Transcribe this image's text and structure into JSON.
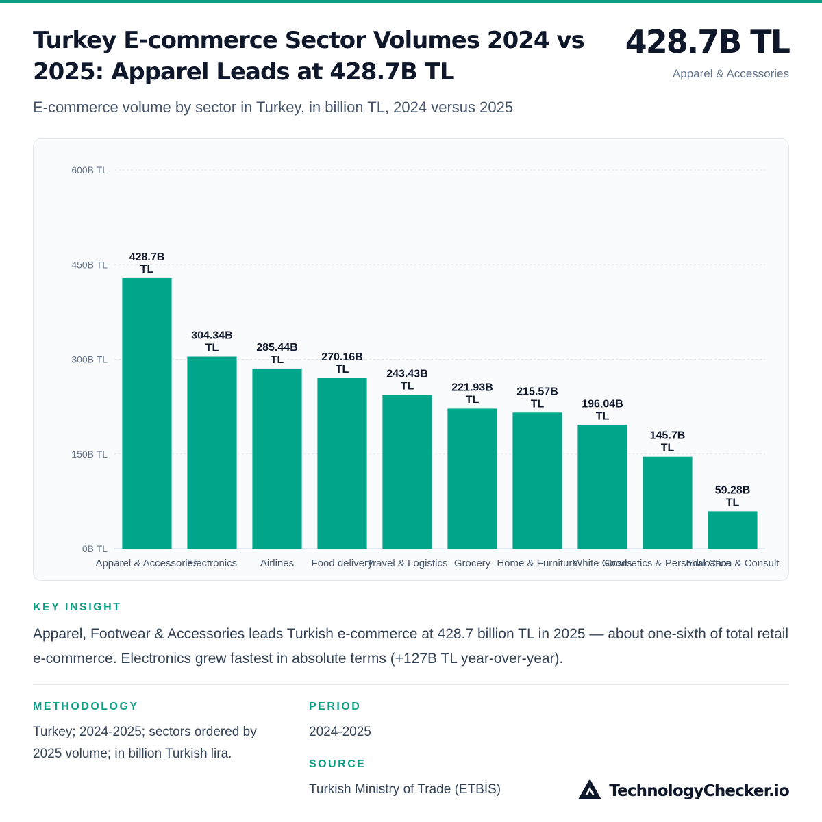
{
  "header": {
    "title": "Turkey E-commerce Sector Volumes 2024 vs 2025: Apparel Leads at 428.7B TL",
    "subtitle": "E-commerce volume by sector in Turkey, in billion TL, 2024 versus 2025",
    "headline_value": "428.7B TL",
    "headline_label": "Apparel & Accessories"
  },
  "colors": {
    "accent": "#0d9f86",
    "bar": "#00a58a"
  },
  "chart_data": {
    "type": "bar",
    "categories": [
      "Apparel & Accessories",
      "Electronics",
      "Airlines",
      "Food delivery",
      "Travel & Logistics",
      "Grocery",
      "Home & Furniture",
      "White Goods",
      "Cosmetics & Personal Care",
      "Education & Consult"
    ],
    "values": [
      428.7,
      304.34,
      285.44,
      270.16,
      243.43,
      221.93,
      215.57,
      196.04,
      145.7,
      59.28
    ],
    "data_labels": [
      "428.7B TL",
      "304.34B TL",
      "285.44B TL",
      "270.16B TL",
      "243.43B TL",
      "221.93B TL",
      "215.57B TL",
      "196.04B TL",
      "145.7B TL",
      "59.28B TL"
    ],
    "y_ticks": [
      0,
      150,
      300,
      450,
      600
    ],
    "y_tick_labels": [
      "0B TL",
      "150B TL",
      "300B TL",
      "450B TL",
      "600B TL"
    ],
    "ylim": [
      0,
      600
    ],
    "xlabel": "",
    "ylabel": "",
    "grid": true,
    "legend": "none"
  },
  "insight": {
    "label": "KEY INSIGHT",
    "text": "Apparel, Footwear & Accessories leads Turkish e-commerce at 428.7 billion TL in 2025 — about one-sixth of total retail e-commerce. Electronics grew fastest in absolute terms (+127B TL year-over-year)."
  },
  "methodology": {
    "label": "METHODOLOGY",
    "text": "Turkey; 2024-2025; sectors ordered by 2025 volume; in billion Turkish lira."
  },
  "period": {
    "label": "PERIOD",
    "text": "2024-2025"
  },
  "source": {
    "label": "SOURCE",
    "text": "Turkish Ministry of Trade (ETBİS)"
  },
  "brand": {
    "name": "TechnologyChecker.io",
    "icon": "triangle-logo-icon"
  }
}
